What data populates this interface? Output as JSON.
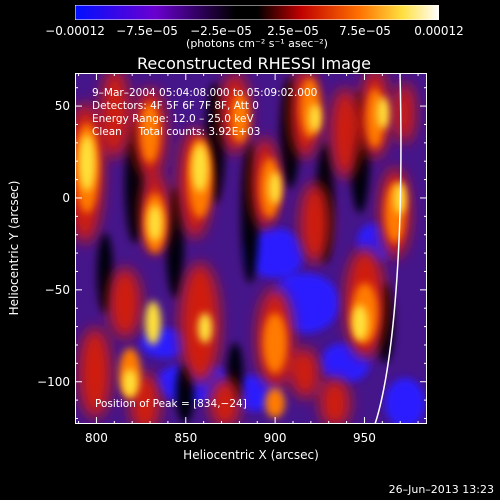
{
  "chart_data": {
    "type": "heatmap",
    "title": "Reconstructed RHESSI Image",
    "xlabel": "Heliocentric X (arcsec)",
    "ylabel": "Heliocentric Y (arcsec)",
    "xlim": [
      788,
      985
    ],
    "ylim": [
      -123,
      68
    ],
    "x_ticks": [
      "800",
      "850",
      "900",
      "950"
    ],
    "x_tick_values": [
      800,
      850,
      900,
      950
    ],
    "y_ticks": [
      "50",
      "0",
      "−50",
      "−100"
    ],
    "y_tick_values": [
      50,
      0,
      -50,
      -100
    ],
    "colorbar": {
      "range": [
        -0.00012,
        0.00012
      ],
      "tick_labels": [
        "−0.00012",
        "−7.5e−05",
        "−2.5e−05",
        "2.5e−05",
        "7.5e−05",
        "0.00012"
      ],
      "tick_values": [
        -0.00012,
        -7.5e-05,
        -2.5e-05,
        2.5e-05,
        7.5e-05,
        0.00012
      ],
      "unit_label": "(photons cm⁻² s⁻¹ asec⁻²)",
      "colors": [
        "#0000ff",
        "#7a00c8",
        "#000000",
        "#c00000",
        "#ff8000",
        "#ffff80",
        "#ffffff"
      ]
    },
    "annotations": {
      "line1": "9–Mar–2004 05:04:08.000 to 05:09:02.000",
      "line2": "Detectors: 4F 5F 6F 7F 8F, Att 0",
      "line3": "Energy Range: 12.0 – 25.0 keV",
      "line4": "Clean     Total counts: 3.92E+03",
      "peak": "Position of Peak = [834,−24]"
    },
    "footer_date": "26–Jun–2013 13:23"
  }
}
